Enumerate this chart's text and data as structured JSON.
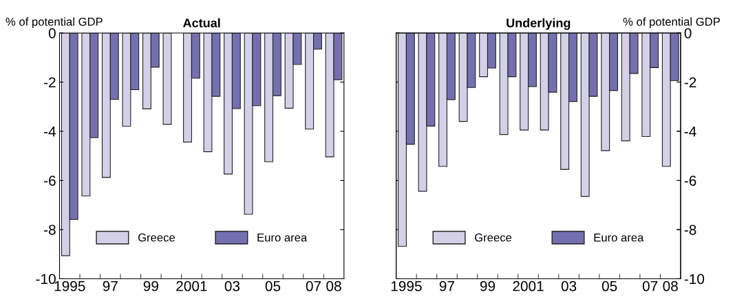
{
  "chart_data": [
    {
      "type": "bar",
      "title": "Actual",
      "ylabel": "% of potential GDP",
      "categories": [
        "1995",
        null,
        "97",
        null,
        "99",
        null,
        "2001",
        null,
        "03",
        null,
        "05",
        null,
        "07",
        "08"
      ],
      "series": [
        {
          "name": "Greece",
          "color": "#d4d0e8",
          "values": [
            -9.06,
            -6.63,
            -5.88,
            -3.8,
            -3.09,
            -3.72,
            -4.44,
            -4.83,
            -5.74,
            -7.38,
            -5.24,
            -3.06,
            -3.91,
            -5.04
          ]
        },
        {
          "name": "Euro area",
          "color": "#7470b0",
          "values": [
            -7.59,
            -4.26,
            -2.7,
            -2.31,
            -1.39,
            null,
            -1.84,
            -2.58,
            -3.08,
            -2.96,
            -2.55,
            -1.28,
            -0.66,
            -1.9
          ]
        }
      ],
      "ylim": [
        -10,
        0
      ],
      "yticks": [
        -10,
        -8,
        -6,
        -4,
        -2,
        0
      ],
      "legend": "bottom",
      "grid": false
    },
    {
      "type": "bar",
      "title": "Underlying",
      "y2label": "% of potential GDP",
      "categories": [
        "1995",
        null,
        "97",
        null,
        "99",
        null,
        "2001",
        null,
        "03",
        null,
        "05",
        null,
        "07",
        "08"
      ],
      "series": [
        {
          "name": "Greece",
          "color": "#d4d0e8",
          "axis": "y2",
          "values": [
            -8.68,
            -6.44,
            -5.43,
            -3.6,
            -1.78,
            -4.13,
            -3.95,
            -3.95,
            -5.55,
            -6.65,
            -4.79,
            -4.39,
            -4.21,
            -5.43
          ]
        },
        {
          "name": "Euro area",
          "color": "#7470b0",
          "axis": "y2",
          "values": [
            -4.53,
            -3.79,
            -2.71,
            -2.22,
            -1.43,
            -1.78,
            -2.18,
            -2.41,
            -2.79,
            -2.58,
            -2.34,
            -1.65,
            -1.41,
            -1.94
          ]
        }
      ],
      "y2lim": [
        -10,
        0
      ],
      "y2ticks": [
        -10,
        -8,
        -6,
        -4,
        -2,
        0
      ],
      "legend": "bottom",
      "grid": false
    }
  ]
}
